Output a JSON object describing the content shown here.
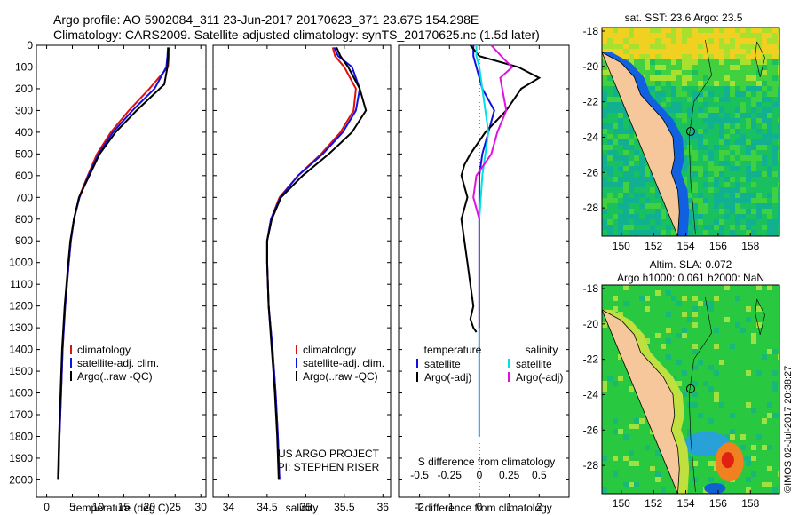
{
  "header": {
    "line1": "Argo profile: AO 5902084_311 23-Jun-2017 20170623_371 23.67S 154.298E",
    "line2": "Climatology: CARS2009. Satellite-adjusted climatology: synTS_20170625.nc (1.5d later)"
  },
  "credits": {
    "line1": "US ARGO PROJECT",
    "line2": "PI: STEPHEN RISER"
  },
  "watermark": "©IMOS 02-Jul-2017 20:38:27",
  "colors": {
    "climatology": "#e01010",
    "satellite": "#1010e0",
    "argo": "#000000",
    "sal_satellite": "#00e0e0",
    "sal_argo": "#e010e0",
    "land": "#f5c79a"
  },
  "chart_data": [
    {
      "id": "temperature",
      "type": "line",
      "xlabel": "temperature (deg C)",
      "ylabel": "",
      "xlim": [
        -2,
        31
      ],
      "ylim": [
        2080,
        0
      ],
      "xticks": [
        0,
        5,
        10,
        15,
        20,
        25,
        30
      ],
      "yticks": [
        0,
        100,
        200,
        300,
        400,
        500,
        600,
        700,
        800,
        900,
        1000,
        1100,
        1200,
        1300,
        1400,
        1500,
        1600,
        1700,
        1800,
        1900,
        2000
      ],
      "legend": [
        "climatology",
        "satellite-adj. clim.",
        "Argo(..raw -QC)"
      ],
      "series": [
        {
          "name": "climatology",
          "color": "#e01010",
          "x": [
            23.9,
            23.8,
            23.6,
            20.0,
            16.0,
            12.5,
            9.8,
            8.0,
            6.3,
            5.3,
            4.7,
            4.3,
            3.6,
            3.1,
            2.8,
            2.5,
            2.3
          ],
          "y": [
            10,
            50,
            100,
            200,
            300,
            400,
            500,
            600,
            700,
            800,
            900,
            1000,
            1200,
            1400,
            1600,
            1800,
            2000
          ]
        },
        {
          "name": "satellite-adj. clim.",
          "color": "#1010e0",
          "x": [
            23.6,
            23.5,
            23.3,
            21.0,
            16.7,
            12.9,
            10.1,
            8.1,
            6.4,
            5.3,
            4.7,
            4.3,
            3.6,
            3.1,
            2.8,
            2.5,
            2.3
          ],
          "y": [
            10,
            50,
            100,
            200,
            300,
            400,
            500,
            600,
            700,
            800,
            900,
            1000,
            1200,
            1400,
            1600,
            1800,
            2000
          ]
        },
        {
          "name": "Argo(..raw -QC)",
          "color": "#000000",
          "x": [
            23.7,
            23.6,
            23.5,
            22.9,
            17.5,
            13.4,
            10.3,
            8.3,
            6.3,
            5.3,
            4.6,
            4.2,
            3.5,
            3.0,
            2.7,
            2.4,
            2.2
          ],
          "y": [
            10,
            50,
            100,
            180,
            300,
            400,
            500,
            600,
            700,
            800,
            900,
            1000,
            1200,
            1400,
            1600,
            1800,
            2000
          ]
        }
      ]
    },
    {
      "id": "salinity",
      "type": "line",
      "xlabel": "salinity",
      "ylabel": "",
      "xlim": [
        33.8,
        36.1
      ],
      "ylim": [
        2080,
        0
      ],
      "xticks": [
        34,
        34.5,
        35,
        35.5,
        36
      ],
      "legend": [
        "climatology",
        "satellite-adj. clim.",
        "Argo(..raw -QC)"
      ],
      "series": [
        {
          "name": "climatology",
          "color": "#e01010",
          "x": [
            35.35,
            35.38,
            35.5,
            35.65,
            35.62,
            35.45,
            35.2,
            34.9,
            34.66,
            34.55,
            34.5,
            34.5,
            34.52,
            34.57,
            34.61,
            34.64,
            34.66
          ],
          "y": [
            10,
            50,
            100,
            200,
            300,
            400,
            500,
            600,
            700,
            800,
            900,
            1000,
            1200,
            1400,
            1600,
            1800,
            2000
          ]
        },
        {
          "name": "satellite-adj. clim.",
          "color": "#1010e0",
          "x": [
            35.37,
            35.42,
            35.6,
            35.7,
            35.65,
            35.48,
            35.22,
            34.9,
            34.67,
            34.55,
            34.5,
            34.5,
            34.52,
            34.57,
            34.61,
            34.64,
            34.66
          ],
          "y": [
            10,
            50,
            100,
            200,
            300,
            400,
            500,
            600,
            700,
            800,
            900,
            1000,
            1200,
            1400,
            1600,
            1800,
            2000
          ]
        },
        {
          "name": "Argo(..raw -QC)",
          "color": "#000000",
          "x": [
            35.4,
            35.45,
            35.55,
            35.7,
            35.78,
            35.6,
            35.3,
            34.96,
            34.68,
            34.56,
            34.5,
            34.5,
            34.52,
            34.56,
            34.6,
            34.63,
            34.65
          ],
          "y": [
            10,
            50,
            100,
            200,
            300,
            400,
            500,
            600,
            700,
            800,
            900,
            1000,
            1200,
            1400,
            1600,
            1800,
            2000
          ]
        }
      ]
    },
    {
      "id": "difference",
      "type": "line",
      "xlabel": "T difference from climatology",
      "xlabel_top": "S difference from climatology",
      "xlim": [
        -2.7,
        3.0
      ],
      "ylim": [
        2080,
        0
      ],
      "xticks": [
        -2,
        -1,
        0,
        1,
        2
      ],
      "xticks_top_labels": [
        "-0.5",
        "-0.25",
        "0",
        "0.25",
        "0.5"
      ],
      "legend_groups": [
        "temperature",
        "salinity"
      ],
      "legend": [
        "satellite",
        "Argo(-adj)",
        "satellite",
        "Argo(-adj)"
      ],
      "series": [
        {
          "name": "satellite",
          "group": "temperature",
          "color": "#1010e0",
          "x": [
            -0.2,
            -0.2,
            -0.1,
            0.1,
            0.5,
            0.3,
            0.1,
            0.0,
            0.0,
            0.0,
            0.0,
            0.0,
            0.0,
            0.0,
            0.0,
            0.0
          ],
          "y": [
            0,
            50,
            100,
            200,
            300,
            400,
            500,
            600,
            700,
            800,
            900,
            1000,
            1200,
            1400,
            1600,
            1800
          ]
        },
        {
          "name": "Argo(-adj)",
          "group": "temperature",
          "color": "#000000",
          "x": [
            -0.3,
            0.0,
            1.3,
            2.0,
            1.4,
            0.9,
            0.2,
            -0.3,
            -0.5,
            -0.6,
            -0.4,
            -0.6,
            -0.5,
            -0.4,
            -0.3,
            -0.2,
            -0.3,
            -0.2,
            -0.1
          ],
          "y": [
            0,
            50,
            100,
            150,
            200,
            300,
            400,
            500,
            550,
            600,
            700,
            800,
            900,
            1000,
            1100,
            1200,
            1260,
            1300,
            1320
          ]
        },
        {
          "name": "satellite",
          "group": "salinity",
          "color": "#00e0e0",
          "x": [
            -0.1,
            -0.1,
            0.0,
            0.1,
            0.2,
            0.3,
            0.2,
            0.1,
            0.05,
            0.0,
            0.0,
            0.0,
            0.0,
            0.0,
            0.0,
            0.0
          ],
          "y": [
            0,
            50,
            100,
            200,
            300,
            400,
            500,
            600,
            700,
            800,
            900,
            1000,
            1200,
            1400,
            1600,
            1800
          ]
        },
        {
          "name": "Argo(-adj)",
          "group": "salinity",
          "color": "#e010e0",
          "x": [
            0.4,
            0.8,
            1.1,
            0.7,
            0.9,
            0.6,
            0.4,
            -0.1,
            -0.2,
            0.0,
            0.0,
            0.0,
            0.0
          ],
          "y": [
            0,
            60,
            100,
            150,
            300,
            400,
            500,
            600,
            700,
            800,
            1000,
            1200,
            1300
          ]
        }
      ]
    },
    {
      "id": "sst-map",
      "type": "heatmap",
      "title": "sat. SST: 23.6  Argo: 23.5",
      "xlim": [
        148.8,
        159.8
      ],
      "ylim": [
        -29.6,
        -17.8
      ],
      "xticks": [
        150,
        152,
        154,
        156,
        158
      ],
      "yticks": [
        -18,
        -20,
        -22,
        -24,
        -26,
        -28
      ],
      "argo_position": {
        "lon": 154.298,
        "lat": -23.67
      }
    },
    {
      "id": "sla-map",
      "type": "heatmap",
      "title": "Altim. SLA: 0.072",
      "subtitle": "Argo h1000: 0.061  h2000: NaN",
      "xlim": [
        148.8,
        159.8
      ],
      "ylim": [
        -29.6,
        -17.8
      ],
      "xticks": [
        150,
        152,
        154,
        156,
        158
      ],
      "yticks": [
        -18,
        -20,
        -22,
        -24,
        -26,
        -28
      ],
      "argo_position": {
        "lon": 154.298,
        "lat": -23.67
      }
    }
  ]
}
